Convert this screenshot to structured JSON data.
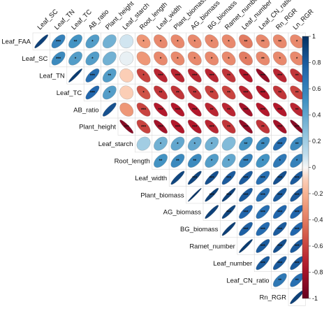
{
  "chart_data": {
    "type": "heatmap",
    "shape": "ellipse-upper-triangle",
    "variables": [
      "Leaf_FAA",
      "Leaf_SC",
      "Leaf_TN",
      "Leaf_TC",
      "AB_ratio",
      "Plant_height",
      "Leaf_starch",
      "Root_length",
      "Leaf_width",
      "Plant_biomass",
      "AG_biomass",
      "BG_biomass",
      "Ramet_number",
      "Leaf_number",
      "Leaf_CN_ratio",
      "Rn_RGR",
      "Ln_RGR"
    ],
    "row_labels": [
      "Leaf_FAA",
      "Leaf_SC",
      "Leaf_TN",
      "Leaf_TC",
      "AB_ratio",
      "Plant_height",
      "Leaf_starch",
      "Root_length",
      "Leaf_width",
      "Plant_biomass",
      "AG_biomass",
      "BG_biomass",
      "Ramet_number",
      "Leaf_number",
      "Leaf_CN_ratio",
      "Rn_RGR"
    ],
    "col_labels": [
      "Leaf_SC",
      "Leaf_TN",
      "Leaf_TC",
      "AB_ratio",
      "Plant_height",
      "Leaf_starch",
      "Root_length",
      "Leaf_width",
      "Plant_biomass",
      "AG_biomass",
      "BG_biomass",
      "Ramet_number",
      "Leaf_number",
      "Leaf_CN_ratio",
      "Rn_RGR",
      "Ln_RGR"
    ],
    "correlations": [
      [
        0.92,
        0.6,
        0.5,
        0.45,
        0.35,
        0.05,
        -0.3,
        -0.35,
        -0.35,
        -0.35,
        -0.35,
        -0.35,
        -0.4,
        -0.35,
        -0.35,
        -0.35
      ],
      [
        null,
        0.55,
        0.45,
        0.45,
        0.35,
        0.02,
        -0.3,
        -0.35,
        -0.35,
        -0.35,
        -0.35,
        -0.35,
        -0.4,
        -0.35,
        -0.35,
        -0.35
      ],
      [
        null,
        null,
        0.95,
        0.7,
        0.45,
        -0.1,
        -0.6,
        -0.7,
        -0.7,
        -0.7,
        -0.7,
        -0.65,
        -0.75,
        -0.85,
        -0.7,
        -0.65
      ],
      [
        null,
        null,
        null,
        0.75,
        0.45,
        -0.1,
        -0.55,
        -0.65,
        -0.65,
        -0.65,
        -0.6,
        -0.6,
        -0.7,
        -0.75,
        -0.65,
        -0.6
      ],
      [
        null,
        null,
        null,
        null,
        0.85,
        -0.3,
        -0.6,
        -0.75,
        -0.75,
        -0.75,
        -0.7,
        -0.7,
        -0.8,
        -0.75,
        -0.75,
        -0.7
      ],
      [
        null,
        null,
        null,
        null,
        null,
        -0.9,
        -0.6,
        -0.8,
        -0.75,
        -0.75,
        -0.7,
        -0.65,
        -0.85,
        -0.65,
        -0.8,
        -0.9
      ],
      [
        null,
        null,
        null,
        null,
        null,
        null,
        0.2,
        0.35,
        0.4,
        0.4,
        0.35,
        0.3,
        0.5,
        0.55,
        0.7,
        0.55
      ],
      [
        null,
        null,
        null,
        null,
        null,
        null,
        null,
        0.5,
        0.55,
        0.55,
        0.45,
        0.4,
        0.6,
        0.5,
        0.65,
        0.6
      ],
      [
        null,
        null,
        null,
        null,
        null,
        null,
        null,
        null,
        0.9,
        0.9,
        0.85,
        0.8,
        0.8,
        0.7,
        0.85,
        0.8
      ],
      [
        null,
        null,
        null,
        null,
        null,
        null,
        null,
        null,
        null,
        0.98,
        0.92,
        0.92,
        0.8,
        0.7,
        0.8,
        0.8
      ],
      [
        null,
        null,
        null,
        null,
        null,
        null,
        null,
        null,
        null,
        null,
        0.92,
        0.9,
        0.75,
        0.7,
        0.75,
        0.75
      ],
      [
        null,
        null,
        null,
        null,
        null,
        null,
        null,
        null,
        null,
        null,
        null,
        0.93,
        0.78,
        0.72,
        0.8,
        0.75
      ],
      [
        null,
        null,
        null,
        null,
        null,
        null,
        null,
        null,
        null,
        null,
        null,
        null,
        0.95,
        0.8,
        0.85,
        0.8
      ],
      [
        null,
        null,
        null,
        null,
        null,
        null,
        null,
        null,
        null,
        null,
        null,
        null,
        null,
        0.8,
        0.8,
        0.8
      ],
      [
        null,
        null,
        null,
        null,
        null,
        null,
        null,
        null,
        null,
        null,
        null,
        null,
        null,
        null,
        0.65,
        0.7
      ],
      [
        null,
        null,
        null,
        null,
        null,
        null,
        null,
        null,
        null,
        null,
        null,
        null,
        null,
        null,
        null,
        0.92
      ]
    ],
    "significance": [
      [
        "",
        "***",
        "**",
        "*",
        "",
        "",
        "*",
        "*",
        "*",
        "*",
        "*",
        "*",
        "**",
        "**",
        "**",
        "*"
      ],
      [
        null,
        "***",
        "*",
        "*",
        "",
        "",
        "",
        "*",
        "*",
        "*",
        "*",
        "*",
        "*",
        "**",
        "*",
        "*"
      ],
      [
        null,
        null,
        "",
        "***",
        "**",
        "",
        "*",
        "***",
        "***",
        "***",
        "***",
        "**",
        "***",
        "***",
        "***",
        "**"
      ],
      [
        null,
        null,
        null,
        "***",
        "*",
        "",
        "*",
        "**",
        "**",
        "**",
        "**",
        "**",
        "***",
        "***",
        "**",
        "**"
      ],
      [
        null,
        null,
        null,
        null,
        "",
        "",
        "***",
        "***",
        "***",
        "***",
        "**",
        "**",
        "***",
        "***",
        "***",
        "**"
      ],
      [
        null,
        null,
        null,
        null,
        null,
        "***",
        "***",
        "***",
        "***",
        "***",
        "***",
        "**",
        "***",
        "**",
        "***",
        "***"
      ],
      [
        null,
        null,
        null,
        null,
        null,
        null,
        "",
        "*",
        "*",
        "*",
        "*",
        "",
        "**",
        "**",
        "***",
        "**"
      ],
      [
        null,
        null,
        null,
        null,
        null,
        null,
        null,
        "**",
        "**",
        "**",
        "*",
        "*",
        "***",
        "*",
        "*",
        "*"
      ],
      [
        null,
        null,
        null,
        null,
        null,
        null,
        null,
        null,
        "",
        "***",
        "***",
        "***",
        "***",
        "***",
        "***",
        "***"
      ],
      [
        null,
        null,
        null,
        null,
        null,
        null,
        null,
        null,
        null,
        "",
        "***",
        "***",
        "***",
        "***",
        "***",
        "***"
      ],
      [
        null,
        null,
        null,
        null,
        null,
        null,
        null,
        null,
        null,
        null,
        "",
        "***",
        "***",
        "***",
        "***",
        "***"
      ],
      [
        null,
        null,
        null,
        null,
        null,
        null,
        null,
        null,
        null,
        null,
        null,
        "",
        "***",
        "***",
        "***",
        "***"
      ],
      [
        null,
        null,
        null,
        null,
        null,
        null,
        null,
        null,
        null,
        null,
        null,
        null,
        "",
        "***",
        "***",
        "***"
      ],
      [
        null,
        null,
        null,
        null,
        null,
        null,
        null,
        null,
        null,
        null,
        null,
        null,
        null,
        "***",
        "***",
        "***"
      ],
      [
        null,
        null,
        null,
        null,
        null,
        null,
        null,
        null,
        null,
        null,
        null,
        null,
        null,
        null,
        "**",
        "**"
      ],
      [
        null,
        null,
        null,
        null,
        null,
        null,
        null,
        null,
        null,
        null,
        null,
        null,
        null,
        null,
        null,
        ""
      ]
    ],
    "colorbar": {
      "ticks": [
        "1",
        "0.8",
        "0.6",
        "0.4",
        "0.2",
        "0",
        "-0.2",
        "-0.4",
        "-0.6",
        "-0.8",
        "-1"
      ],
      "range": [
        -1,
        1
      ],
      "colors": {
        "negative": "#67001f",
        "neutral": "#ffffff",
        "positive": "#053061"
      }
    }
  }
}
